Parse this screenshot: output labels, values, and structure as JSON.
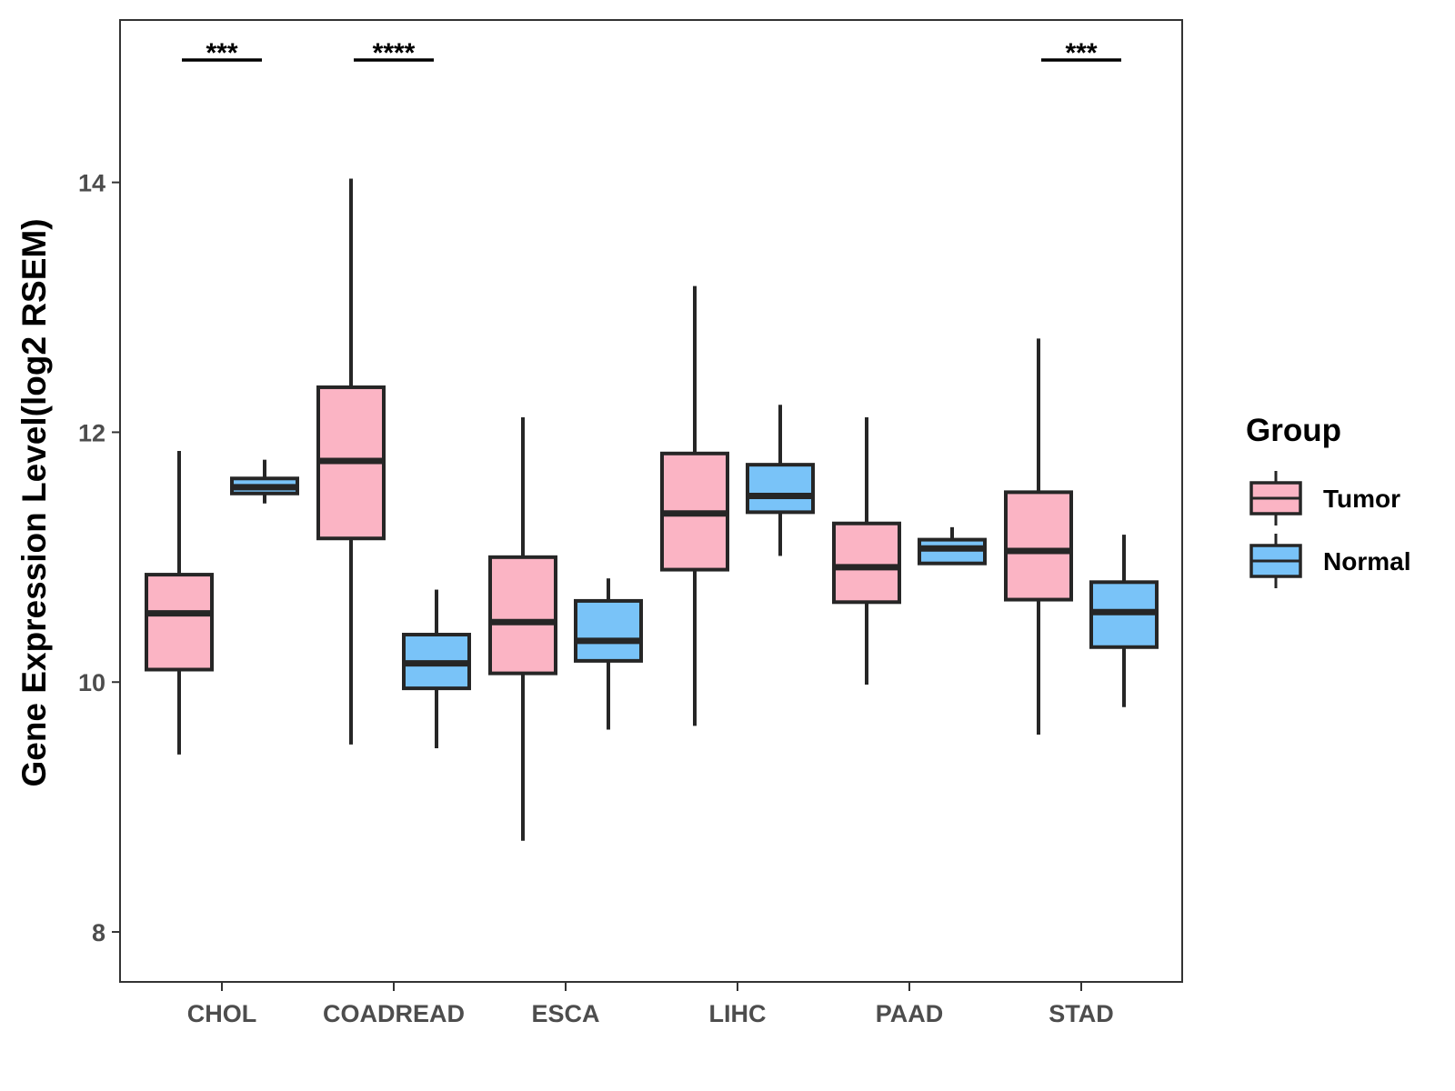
{
  "chart_data": {
    "type": "boxplot",
    "title": "",
    "xlabel": "",
    "ylabel": "Gene Expression Level(log2 RSEM)",
    "ylim": [
      7.6,
      15.3
    ],
    "yticks": [
      8,
      10,
      12,
      14
    ],
    "categories": [
      "CHOL",
      "COADREAD",
      "ESCA",
      "LIHC",
      "PAAD",
      "STAD"
    ],
    "legend": {
      "title": "Group",
      "position": "right",
      "entries": [
        {
          "name": "Tumor",
          "color": "#fbb4c4"
        },
        {
          "name": "Normal",
          "color": "#79c3f8"
        }
      ]
    },
    "series": [
      {
        "name": "Tumor",
        "color": "#fbb4c4",
        "boxes": [
          {
            "category": "CHOL",
            "min": 9.42,
            "q1": 10.1,
            "median": 10.55,
            "q3": 10.86,
            "max": 11.85
          },
          {
            "category": "COADREAD",
            "min": 9.5,
            "q1": 11.15,
            "median": 11.77,
            "q3": 12.36,
            "max": 14.03
          },
          {
            "category": "ESCA",
            "min": 8.73,
            "q1": 10.07,
            "median": 10.48,
            "q3": 11.0,
            "max": 12.12
          },
          {
            "category": "LIHC",
            "min": 9.65,
            "q1": 10.9,
            "median": 11.35,
            "q3": 11.83,
            "max": 13.17
          },
          {
            "category": "PAAD",
            "min": 9.98,
            "q1": 10.64,
            "median": 10.92,
            "q3": 11.27,
            "max": 12.12
          },
          {
            "category": "STAD",
            "min": 9.58,
            "q1": 10.66,
            "median": 11.05,
            "q3": 11.52,
            "max": 12.75
          }
        ]
      },
      {
        "name": "Normal",
        "color": "#79c3f8",
        "boxes": [
          {
            "category": "CHOL",
            "min": 11.43,
            "q1": 11.51,
            "median": 11.56,
            "q3": 11.63,
            "max": 11.78
          },
          {
            "category": "COADREAD",
            "min": 9.47,
            "q1": 9.95,
            "median": 10.15,
            "q3": 10.38,
            "max": 10.74
          },
          {
            "category": "ESCA",
            "min": 9.62,
            "q1": 10.17,
            "median": 10.33,
            "q3": 10.65,
            "max": 10.83
          },
          {
            "category": "LIHC",
            "min": 11.01,
            "q1": 11.36,
            "median": 11.49,
            "q3": 11.74,
            "max": 12.22
          },
          {
            "category": "PAAD",
            "min": 10.95,
            "q1": 10.95,
            "median": 11.07,
            "q3": 11.14,
            "max": 11.24
          },
          {
            "category": "STAD",
            "min": 9.8,
            "q1": 10.28,
            "median": 10.56,
            "q3": 10.8,
            "max": 11.18
          }
        ]
      }
    ],
    "annotations": [
      {
        "category": "CHOL",
        "label": "***",
        "y": 14.98
      },
      {
        "category": "COADREAD",
        "label": "****",
        "y": 14.98
      },
      {
        "category": "STAD",
        "label": "***",
        "y": 14.98
      }
    ]
  }
}
